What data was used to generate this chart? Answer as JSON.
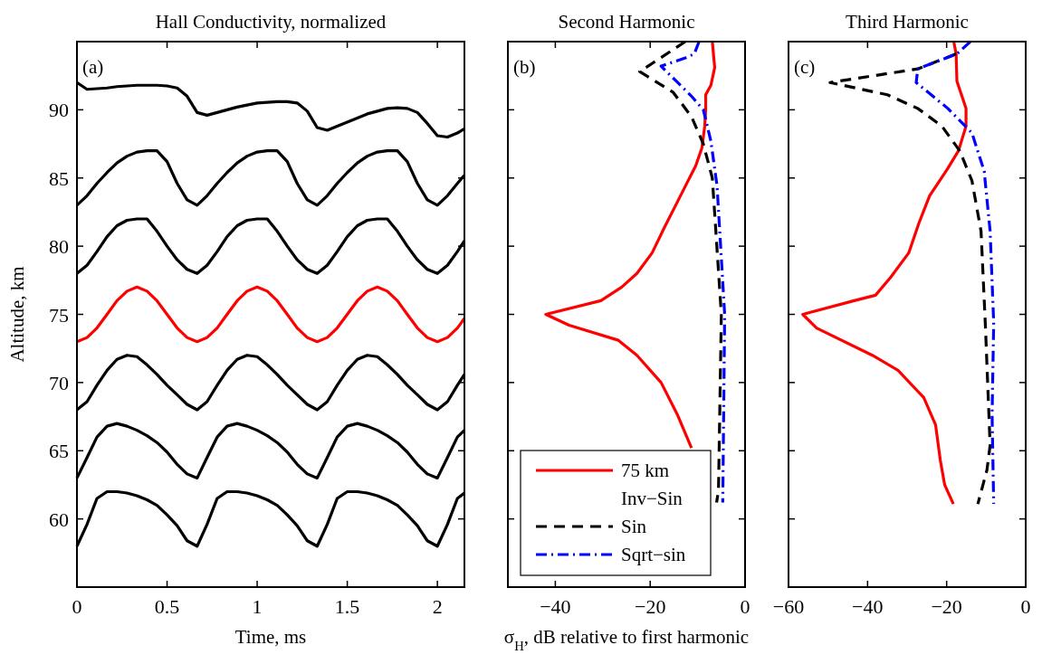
{
  "chart_data": [
    {
      "type": "line",
      "title": "Hall Conductivity, normalized",
      "xlabel": "Time, ms",
      "ylabel": "Altitude, km",
      "annotations": [
        "(a)"
      ],
      "xlim": [
        0,
        2.15
      ],
      "xticks": [
        0,
        0.5,
        1,
        1.5,
        2
      ],
      "ylim": [
        55,
        95
      ],
      "yticks": [
        60,
        65,
        70,
        75,
        80,
        85,
        90
      ],
      "x": [
        0,
        0.056,
        0.111,
        0.167,
        0.222,
        0.278,
        0.333,
        0.389,
        0.444,
        0.5,
        0.556,
        0.611,
        0.667,
        0.722,
        0.778,
        0.833,
        0.889,
        0.944,
        1,
        1.056,
        1.111,
        1.167,
        1.222,
        1.278,
        1.333,
        1.389,
        1.444,
        1.5,
        1.556,
        1.611,
        1.667,
        1.722,
        1.778,
        1.833,
        1.889,
        1.944,
        2,
        2.056,
        2.111,
        2.15
      ],
      "series": [
        {
          "color": "#000000",
          "values": [
            92,
            91.5,
            91.55,
            91.6,
            91.7,
            91.75,
            91.8,
            91.8,
            91.8,
            91.75,
            91.6,
            91,
            89.8,
            89.6,
            89.8,
            90,
            90.2,
            90.35,
            90.5,
            90.55,
            90.6,
            90.6,
            90.5,
            89.9,
            88.7,
            88.5,
            88.8,
            89.1,
            89.4,
            89.7,
            89.9,
            90.1,
            90.15,
            90.1,
            89.8,
            89,
            88.1,
            88,
            88.3,
            88.6
          ]
        },
        {
          "color": "#000000",
          "values": [
            83,
            83.7,
            84.6,
            85.4,
            86.1,
            86.6,
            86.9,
            87,
            87,
            86.2,
            84.6,
            83.4,
            83,
            83.7,
            84.6,
            85.4,
            86.1,
            86.6,
            86.9,
            87,
            87,
            86.2,
            84.6,
            83.4,
            83,
            83.7,
            84.6,
            85.4,
            86.1,
            86.6,
            86.9,
            87,
            87,
            86.2,
            84.6,
            83.4,
            83,
            83.7,
            84.6,
            85.2
          ]
        },
        {
          "color": "#000000",
          "values": [
            78,
            78.6,
            79.6,
            80.7,
            81.5,
            81.9,
            82,
            82,
            81.1,
            80,
            79,
            78.3,
            78,
            78.6,
            79.6,
            80.7,
            81.5,
            81.9,
            82,
            82,
            81.1,
            80,
            79,
            78.3,
            78,
            78.6,
            79.6,
            80.7,
            81.5,
            81.9,
            82,
            82,
            81.1,
            80,
            79,
            78.3,
            78,
            78.6,
            79.6,
            80.4
          ]
        },
        {
          "color": "#ff0000",
          "values": [
            73,
            73.3,
            74,
            75,
            76,
            76.7,
            77,
            76.7,
            76,
            75,
            74,
            73.3,
            73,
            73.3,
            74,
            75,
            76,
            76.7,
            77,
            76.7,
            76,
            75,
            74,
            73.3,
            73,
            73.3,
            74,
            75,
            76,
            76.7,
            77,
            76.7,
            76,
            75,
            74,
            73.3,
            73,
            73.3,
            74,
            74.7
          ]
        },
        {
          "color": "#000000",
          "values": [
            68,
            68.6,
            69.8,
            70.9,
            71.7,
            72,
            71.9,
            71.3,
            70.6,
            69.8,
            69.1,
            68.4,
            68,
            68.6,
            69.8,
            70.9,
            71.7,
            72,
            71.9,
            71.3,
            70.6,
            69.8,
            69.1,
            68.4,
            68,
            68.6,
            69.8,
            70.9,
            71.7,
            72,
            71.9,
            71.3,
            70.6,
            69.8,
            69.1,
            68.4,
            68,
            68.6,
            69.8,
            70.6
          ]
        },
        {
          "color": "#000000",
          "values": [
            63,
            64.5,
            66,
            66.8,
            67,
            66.8,
            66.5,
            66.1,
            65.6,
            64.9,
            64,
            63.3,
            63,
            64.5,
            66,
            66.8,
            67,
            66.8,
            66.5,
            66.1,
            65.6,
            64.9,
            64,
            63.3,
            63,
            64.5,
            66,
            66.8,
            67,
            66.8,
            66.5,
            66.1,
            65.6,
            64.9,
            64,
            63.3,
            63,
            64.5,
            66,
            66.5
          ]
        },
        {
          "color": "#000000",
          "values": [
            58,
            59.6,
            61.5,
            62,
            62,
            61.9,
            61.7,
            61.4,
            61,
            60.3,
            59.5,
            58.4,
            58,
            59.6,
            61.5,
            62,
            62,
            61.9,
            61.7,
            61.4,
            61,
            60.3,
            59.5,
            58.4,
            58,
            59.6,
            61.5,
            62,
            62,
            61.9,
            61.7,
            61.4,
            61,
            60.3,
            59.5,
            58.4,
            58,
            59.6,
            61.5,
            61.9
          ]
        }
      ]
    },
    {
      "type": "line",
      "title": "Second Harmonic",
      "xlabel": "σ$_{H}$, dB relative to first harmonic",
      "annotations": [
        "(b)"
      ],
      "xlim": [
        -50,
        0
      ],
      "xticks": [
        {
          "value": -40,
          "label": "−40"
        },
        {
          "value": -20,
          "label": "−20"
        },
        0
      ],
      "ylim": [
        55,
        95
      ],
      "yticks": [
        60,
        65,
        70,
        75,
        80,
        85,
        90
      ],
      "tick_labels": "x",
      "legend": "bottom left",
      "series": [
        {
          "name": "75 km\nInv−Sin",
          "color": "#ff0000",
          "line_style": "solid",
          "x": [
            -6.9,
            -6.4,
            -7.2,
            -8.3,
            -8.3,
            -8.5,
            -9.1,
            -10.4,
            -13.9,
            -17.1,
            -19.6,
            -22.8,
            -26,
            -30.4,
            -42,
            -37.1,
            -26.7,
            -22.8,
            -17.7,
            -14.2,
            -11.3
          ],
          "values": [
            95,
            93.1,
            91.8,
            91.1,
            90,
            88.8,
            87.2,
            85.9,
            83.5,
            81.3,
            79.5,
            78,
            77,
            76,
            75,
            74.2,
            73.1,
            72,
            70,
            67.6,
            65.2
          ]
        },
        {
          "name": "Sin",
          "color": "#000000",
          "line_style": "dashed",
          "x": [
            -12.6,
            -22.2,
            -15.2,
            -11.3,
            -8.8,
            -6.9,
            -5,
            -5.6,
            -6
          ],
          "values": [
            95,
            92.8,
            91.3,
            89.5,
            87.5,
            85,
            75,
            62.1,
            61.2
          ]
        },
        {
          "name": "Sqrt−sin",
          "color": "#0000ff",
          "line_style": "dotted",
          "x": [
            -9.7,
            -10.7,
            -12.6,
            -17.7,
            -14.5,
            -11.3,
            -8.8,
            -7.2,
            -5.9,
            -4.3,
            -4.7
          ],
          "values": [
            95,
            94.1,
            93.8,
            93.2,
            92.1,
            91,
            90,
            87.7,
            84.4,
            75,
            61.2
          ]
        }
      ]
    },
    {
      "type": "line",
      "title": "Third Harmonic",
      "annotations": [
        "(c)"
      ],
      "xlim": [
        -60,
        0
      ],
      "xticks": [
        {
          "value": -60,
          "label": "−60"
        },
        {
          "value": -40,
          "label": "−40"
        },
        {
          "value": -20,
          "label": "−20"
        },
        0
      ],
      "ylim": [
        55,
        95
      ],
      "yticks": [
        60,
        65,
        70,
        75,
        80,
        85,
        90
      ],
      "tick_labels": "x",
      "series": [
        {
          "color": "#ff0000",
          "line_style": "solid",
          "x": [
            -18.2,
            -17.6,
            -17.4,
            -15.1,
            -15.1,
            -17,
            -19.7,
            -24.3,
            -27,
            -29.6,
            -34.2,
            -38,
            -43.4,
            -56.4,
            -52.9,
            -38.8,
            -32.3,
            -25.8,
            -22.8,
            -21.6,
            -20.5,
            -18.3
          ],
          "values": [
            95,
            94.1,
            92.1,
            90.1,
            88.8,
            87,
            85.7,
            83.7,
            81.7,
            79.5,
            77.7,
            76.4,
            76,
            75,
            74,
            72,
            70.9,
            68.9,
            66.9,
            64.3,
            62.5,
            61.1
          ]
        },
        {
          "color": "#000000",
          "line_style": "dashed",
          "x": [
            -17.6,
            -27.3,
            -49.5,
            -35,
            -27.3,
            -21.2,
            -16.7,
            -13.6,
            -11.3,
            -10.2,
            -9,
            -9.8,
            -12.1
          ],
          "values": [
            94.1,
            93,
            92,
            91.1,
            90.1,
            88.8,
            87,
            84.8,
            81.1,
            74.2,
            65.4,
            63.6,
            61.1
          ]
        },
        {
          "color": "#0000ff",
          "line_style": "dotted",
          "x": [
            -14,
            -17.4,
            -27.3,
            -27.7,
            -19.7,
            -13.6,
            -10.5,
            -9,
            -8.1,
            -8.5,
            -8.1
          ],
          "values": [
            95,
            94.1,
            93,
            92,
            90.1,
            88.3,
            85.5,
            81.1,
            74.4,
            67.6,
            61.1
          ]
        }
      ]
    }
  ]
}
